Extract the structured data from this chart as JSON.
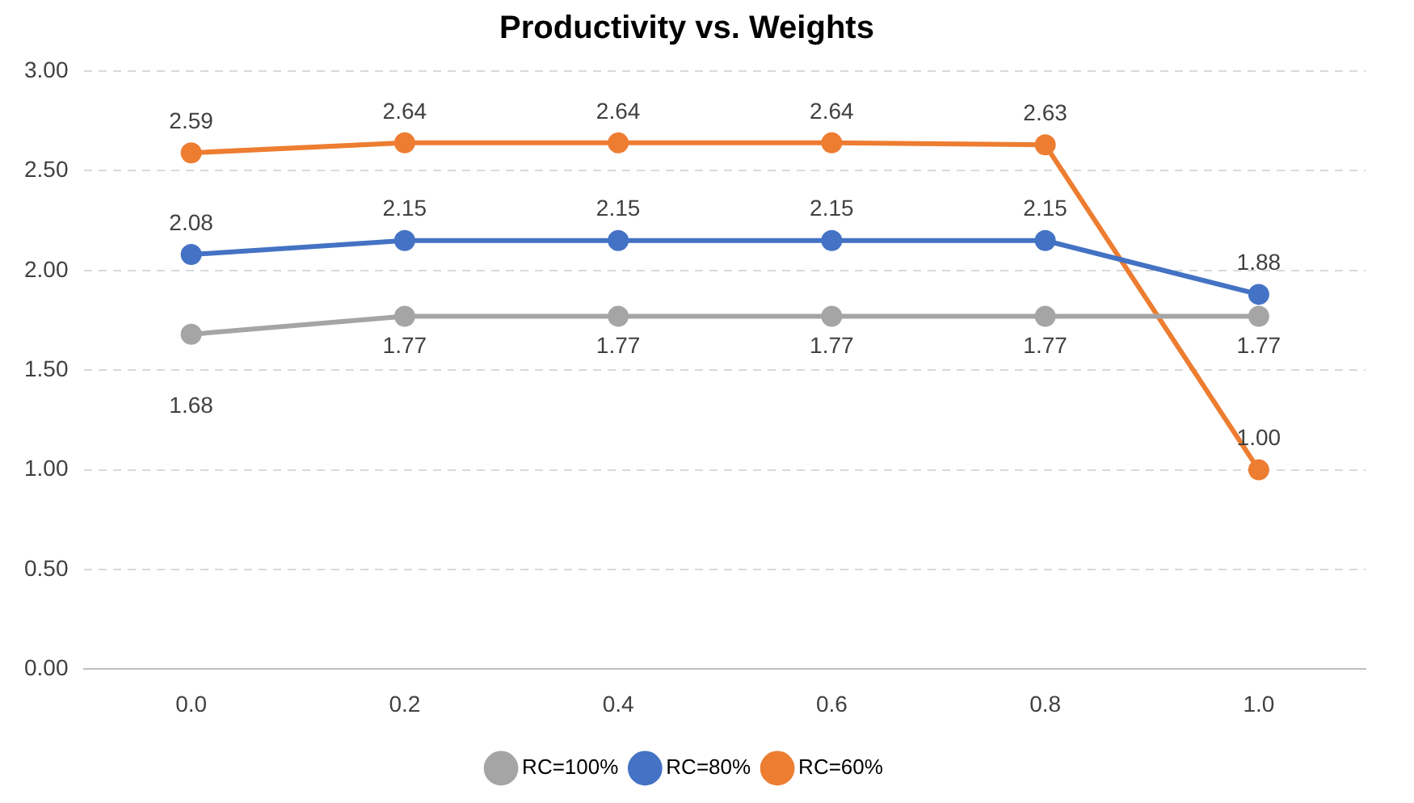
{
  "chart_data": {
    "type": "line",
    "title": "Productivity vs. Weights",
    "categories": [
      "0.0",
      "0.2",
      "0.4",
      "0.6",
      "0.8",
      "1.0"
    ],
    "series": [
      {
        "name": "RC=100%",
        "color": "#a5a5a5",
        "values": [
          1.68,
          1.77,
          1.77,
          1.77,
          1.77,
          1.77
        ],
        "value_labels": [
          "1.68",
          "1.77",
          "1.77",
          "1.77",
          "1.77",
          "1.77"
        ]
      },
      {
        "name": "RC=80%",
        "color": "#4472c4",
        "values": [
          2.08,
          2.15,
          2.15,
          2.15,
          2.15,
          1.88
        ],
        "value_labels": [
          "2.08",
          "2.15",
          "2.15",
          "2.15",
          "2.15",
          "1.88"
        ]
      },
      {
        "name": "RC=60%",
        "color": "#ed7d31",
        "values": [
          2.59,
          2.64,
          2.64,
          2.64,
          2.63,
          1.0
        ],
        "value_labels": [
          "2.59",
          "2.64",
          "2.64",
          "2.64",
          "2.63",
          "1.00"
        ]
      }
    ],
    "ylim": [
      0,
      3
    ],
    "yticks": [
      {
        "value": 0,
        "label": "0.00"
      },
      {
        "value": 0.5,
        "label": "0.50"
      },
      {
        "value": 1,
        "label": "1.00"
      },
      {
        "value": 1.5,
        "label": "1.50"
      },
      {
        "value": 2,
        "label": "2.00"
      },
      {
        "value": 2.5,
        "label": "2.50"
      },
      {
        "value": 3,
        "label": "3.00"
      }
    ],
    "grid": "y",
    "legend": "bottom",
    "marker": "circle",
    "line_style": "solid"
  }
}
